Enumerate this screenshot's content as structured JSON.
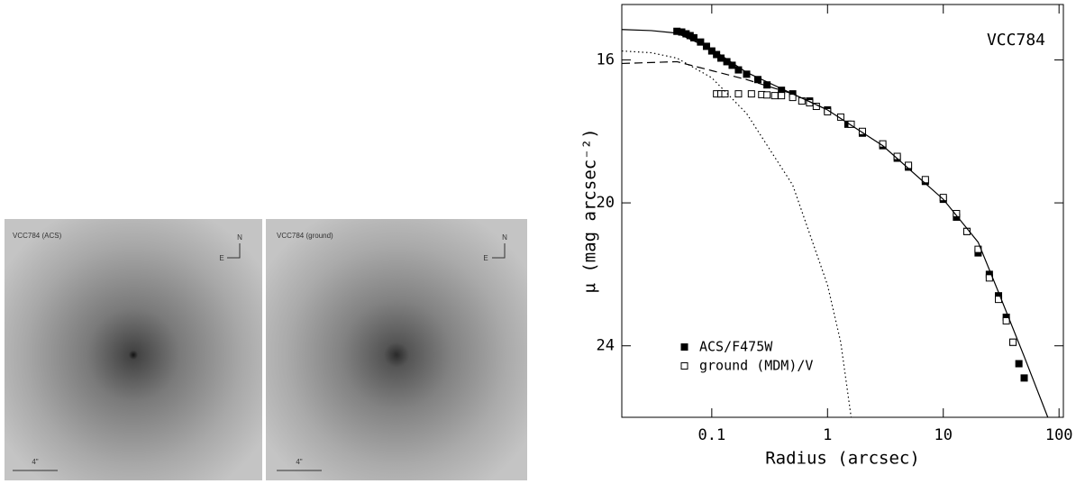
{
  "images": [
    {
      "title": "VCC784 (ACS)",
      "north": "N",
      "east": "E",
      "scale": "4\""
    },
    {
      "title": "VCC784 (ground)",
      "north": "N",
      "east": "E",
      "scale": "4\""
    }
  ],
  "chart_data": {
    "type": "scatter",
    "label": "VCC784",
    "xlabel": "Radius (arcsec)",
    "ylabel": "μ (mag arcsec⁻²)",
    "xscale": "log",
    "xlim": [
      0.0167,
      109
    ],
    "ylim": [
      26,
      14.45
    ],
    "xticks": [
      0.1,
      1,
      10,
      100
    ],
    "yticks": [
      16,
      20,
      24
    ],
    "legend": "lower left",
    "series": [
      {
        "name": "ACS/F475W",
        "marker": "filled",
        "color": "#000000",
        "x": [
          0.05,
          0.055,
          0.06,
          0.065,
          0.07,
          0.08,
          0.09,
          0.1,
          0.11,
          0.12,
          0.135,
          0.15,
          0.17,
          0.2,
          0.25,
          0.3,
          0.4,
          0.5,
          0.7,
          1,
          1.5,
          2,
          3,
          4,
          5,
          7,
          10,
          13,
          16,
          20,
          25,
          30,
          35,
          40,
          45,
          50
        ],
        "values": [
          15.2,
          15.22,
          15.27,
          15.32,
          15.38,
          15.5,
          15.62,
          15.75,
          15.85,
          15.95,
          16.05,
          16.15,
          16.28,
          16.4,
          16.55,
          16.7,
          16.85,
          16.95,
          17.15,
          17.4,
          17.8,
          18.05,
          18.4,
          18.75,
          19.0,
          19.4,
          19.9,
          20.4,
          20.8,
          21.4,
          22.0,
          22.6,
          23.2,
          23.9,
          24.5,
          24.9
        ]
      },
      {
        "name": "ground (MDM)/V",
        "marker": "open",
        "color": "#000000",
        "x": [
          0.11,
          0.12,
          0.13,
          0.17,
          0.22,
          0.27,
          0.3,
          0.35,
          0.4,
          0.5,
          0.6,
          0.7,
          0.8,
          1,
          1.3,
          1.6,
          2,
          3,
          4,
          5,
          7,
          10,
          13,
          16,
          20,
          25,
          30,
          35,
          40
        ],
        "values": [
          16.95,
          16.95,
          16.95,
          16.95,
          16.95,
          16.97,
          16.98,
          17.0,
          17.0,
          17.05,
          17.15,
          17.2,
          17.3,
          17.45,
          17.6,
          17.8,
          18.0,
          18.35,
          18.7,
          18.95,
          19.35,
          19.85,
          20.3,
          20.8,
          21.3,
          22.1,
          22.7,
          23.3,
          23.9
        ]
      },
      {
        "style": "solid",
        "color": "#000000",
        "x": [
          0.0167,
          0.03,
          0.05,
          0.1,
          0.2,
          0.5,
          1,
          3,
          10,
          20,
          30,
          50,
          80
        ],
        "values": [
          15.15,
          15.18,
          15.25,
          15.7,
          16.35,
          16.95,
          17.4,
          18.4,
          19.9,
          21.1,
          22.5,
          24.3,
          26
        ]
      },
      {
        "style": "dashed",
        "color": "#000000",
        "x": [
          0.0167,
          0.05,
          0.1,
          0.2,
          0.5,
          1
        ],
        "values": [
          16.1,
          16.05,
          16.3,
          16.55,
          16.95,
          17.4
        ]
      },
      {
        "style": "dotted",
        "color": "#000000",
        "x": [
          0.0167,
          0.03,
          0.05,
          0.1,
          0.2,
          0.5,
          1,
          1.3,
          1.6
        ],
        "values": [
          15.75,
          15.8,
          15.95,
          16.5,
          17.5,
          19.5,
          22.3,
          23.9,
          26
        ]
      }
    ]
  }
}
